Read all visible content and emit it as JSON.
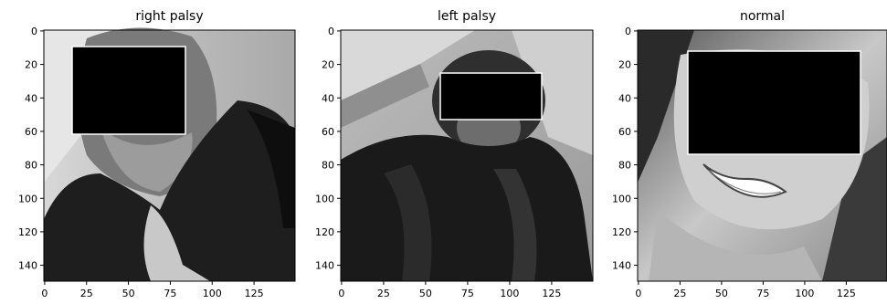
{
  "figure": {
    "background": "#ffffff",
    "axis_color": "#000000",
    "image_colormap": "grayscale",
    "panels": [
      {
        "title": "right palsy",
        "description": "grayscale photo of a person wearing a headscarf, eyes covered by a black rectangle",
        "x_ticks": [
          "0",
          "25",
          "50",
          "75",
          "100",
          "125"
        ],
        "y_ticks": [
          "0",
          "20",
          "40",
          "60",
          "80",
          "100",
          "120",
          "140"
        ]
      },
      {
        "title": "left palsy",
        "description": "grayscale photo of a person wearing a dark headscarf and robe, eyes covered by a black rectangle",
        "x_ticks": [
          "0",
          "25",
          "50",
          "75",
          "100",
          "125"
        ],
        "y_ticks": [
          "0",
          "20",
          "40",
          "60",
          "80",
          "100",
          "120",
          "140"
        ]
      },
      {
        "title": "normal",
        "description": "grayscale close-up of a smiling face, eyes covered by a black rectangle",
        "x_ticks": [
          "0",
          "25",
          "50",
          "75",
          "100",
          "125"
        ],
        "y_ticks": [
          "0",
          "20",
          "40",
          "60",
          "80",
          "100",
          "120",
          "140"
        ]
      }
    ]
  }
}
